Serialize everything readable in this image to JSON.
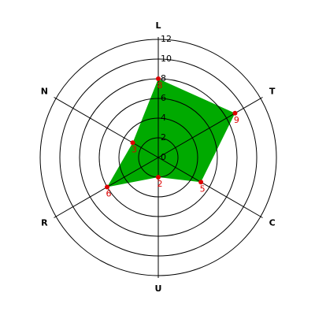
{
  "chart_data": {
    "type": "radar",
    "categories": [
      "L",
      "T",
      "C",
      "U",
      "R",
      "N"
    ],
    "values": [
      8,
      9,
      5,
      2,
      6,
      3
    ],
    "color": "#00aa00",
    "point_color": "#dd0000",
    "ylim": [
      0,
      12
    ],
    "yticks": [
      0,
      2,
      4,
      6,
      8,
      10,
      12
    ],
    "grid": true
  }
}
